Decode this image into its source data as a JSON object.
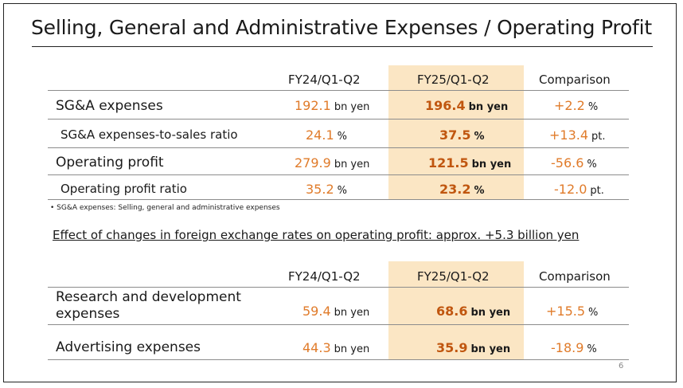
{
  "title": "Selling, General and Administrative Expenses / Operating Profit",
  "table1": {
    "headers": {
      "col1": "FY24/Q1-Q2",
      "col2": "FY25/Q1-Q2",
      "col3": "Comparison"
    },
    "rows": [
      {
        "label": "SG&A expenses",
        "fy24": "192.1",
        "fy24_unit": "bn yen",
        "fy25": "196.4",
        "fy25_unit": "bn yen",
        "cmp": "+2.2",
        "cmp_unit": "%"
      },
      {
        "label": "SG&A expenses-to-sales ratio",
        "fy24": "24.1",
        "fy24_unit": "%",
        "fy25": "37.5",
        "fy25_unit": "%",
        "cmp": "+13.4",
        "cmp_unit": "pt."
      },
      {
        "label": "Operating profit",
        "fy24": "279.9",
        "fy24_unit": "bn yen",
        "fy25": "121.5",
        "fy25_unit": "bn yen",
        "cmp": "-56.6",
        "cmp_unit": "%"
      },
      {
        "label": "Operating profit ratio",
        "fy24": "35.2",
        "fy24_unit": "%",
        "fy25": "23.2",
        "fy25_unit": "%",
        "cmp": "-12.0",
        "cmp_unit": "pt."
      }
    ]
  },
  "footnote": "•  SG&A expenses: Selling, general and administrative expenses",
  "fx_note": "Effect of changes in foreign exchange rates on operating profit: approx. +5.3 billion yen",
  "table2": {
    "headers": {
      "col1": "FY24/Q1-Q2",
      "col2": "FY25/Q1-Q2",
      "col3": "Comparison"
    },
    "rows": [
      {
        "label_line1": "Research and development",
        "label_line2": "expenses",
        "fy24": "59.4",
        "fy24_unit": "bn yen",
        "fy25": "68.6",
        "fy25_unit": "bn yen",
        "cmp": "+15.5",
        "cmp_unit": "%"
      },
      {
        "label": "Advertising expenses",
        "fy24": "44.3",
        "fy24_unit": "bn yen",
        "fy25": "35.9",
        "fy25_unit": "bn yen",
        "cmp": "-18.9",
        "cmp_unit": "%"
      }
    ]
  },
  "page_number": "6",
  "colors": {
    "highlight": "#fbe6c4",
    "value_orange": "#e07b2a",
    "value_bold": "#c0560f"
  }
}
